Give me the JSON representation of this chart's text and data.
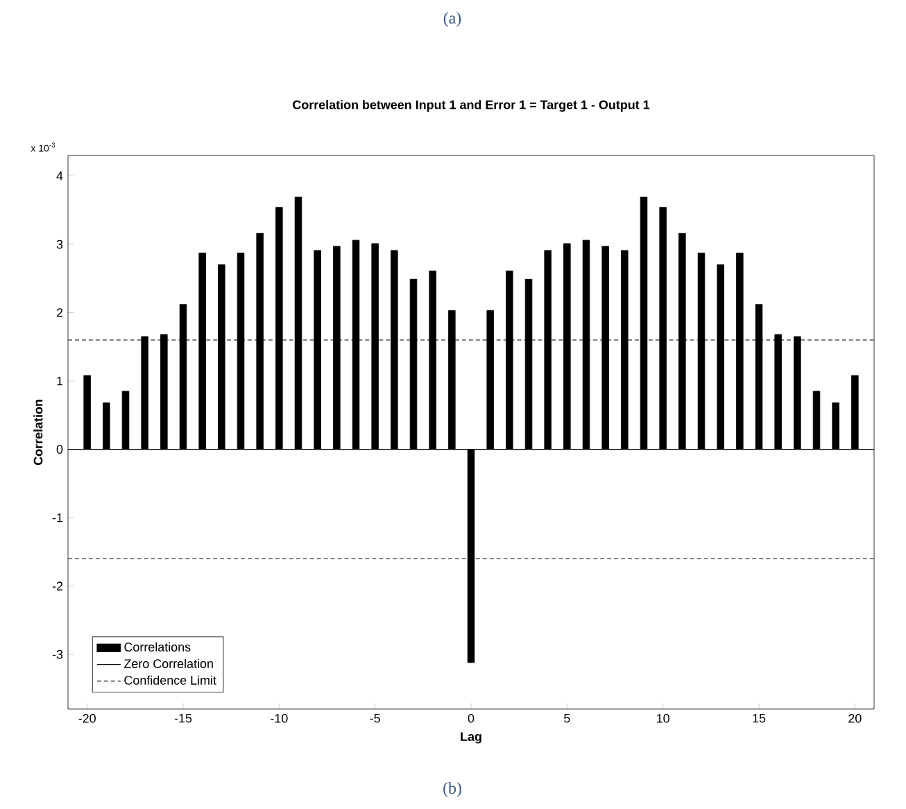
{
  "chart_data": {
    "type": "bar",
    "title": "Correlation between Input 1 and Error 1 = Target 1 - Output 1",
    "xlabel": "Lag",
    "ylabel": "Correlation",
    "annotations": [
      "(a)",
      "(b)",
      "x 10$^{-3}$"
    ],
    "x": [
      -20,
      -19,
      -18,
      -17,
      -16,
      -15,
      -14,
      -13,
      -12,
      -11,
      -10,
      -9,
      -8,
      -7,
      -6,
      -5,
      -4,
      -3,
      -2,
      -1,
      0,
      1,
      2,
      3,
      4,
      5,
      6,
      7,
      8,
      9,
      10,
      11,
      12,
      13,
      14,
      15,
      16,
      17,
      18,
      19,
      20
    ],
    "series": [
      {
        "name": "Correlations",
        "color": "#000000",
        "values": [
          1.08,
          0.68,
          0.85,
          1.65,
          1.68,
          2.12,
          2.87,
          2.7,
          2.87,
          3.16,
          3.54,
          3.69,
          2.91,
          2.97,
          3.06,
          3.01,
          2.91,
          2.49,
          2.61,
          2.03,
          -3.12,
          2.03,
          2.61,
          2.49,
          2.91,
          3.01,
          3.06,
          2.97,
          2.91,
          3.69,
          3.54,
          3.16,
          2.87,
          2.7,
          2.87,
          2.12,
          1.68,
          1.65,
          0.85,
          0.68,
          1.08
        ]
      }
    ],
    "ref_lines": [
      {
        "axis": "y",
        "value": 0,
        "label": "Zero Correlation",
        "color": "#000000",
        "line_style": "solid"
      },
      {
        "axis": "y",
        "value": 1.6,
        "label": "Confidence Limit",
        "color": "#000000",
        "line_style": "dashed"
      },
      {
        "axis": "y",
        "value": -1.6,
        "color": "#000000",
        "line_style": "dashed"
      }
    ],
    "xlim": [
      -21,
      21
    ],
    "ylim": [
      -3.8,
      4.3
    ],
    "xticks": [
      -20,
      -15,
      -10,
      -5,
      0,
      5,
      10,
      15,
      20
    ],
    "yticks": [
      -3,
      -2,
      -1,
      0,
      1,
      2,
      3,
      4
    ],
    "legend": "bottom left",
    "grid": false
  }
}
